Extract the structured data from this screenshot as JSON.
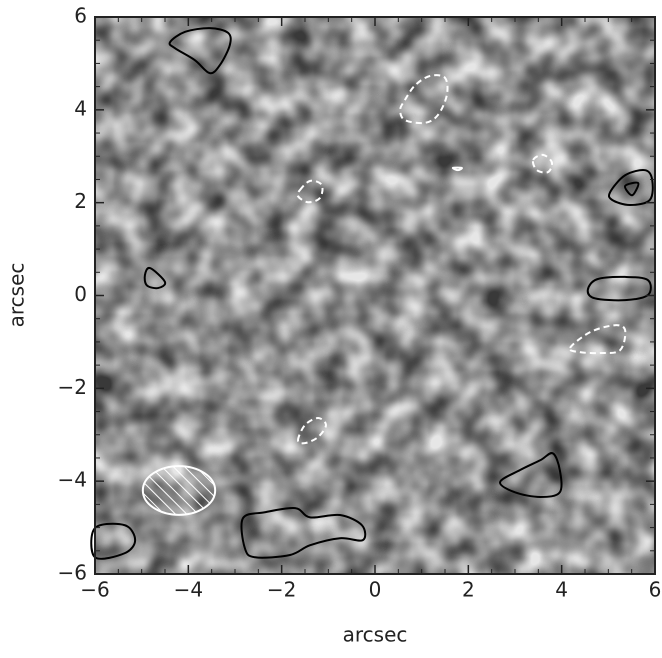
{
  "chart_data": {
    "type": "contour_image",
    "xlabel": "arcsec",
    "ylabel": "arcsec",
    "xlim": [
      -6,
      6
    ],
    "ylim": [
      -6,
      6
    ],
    "xticks": [
      {
        "value": -6,
        "label": "−6"
      },
      {
        "value": -4,
        "label": "−4"
      },
      {
        "value": -2,
        "label": "−2"
      },
      0,
      2,
      4,
      6
    ],
    "yticks": [
      {
        "value": -6,
        "label": "−6"
      },
      {
        "value": -4,
        "label": "−4"
      },
      {
        "value": -2,
        "label": "−2"
      },
      0,
      2,
      4,
      6
    ],
    "minor_ticks": [
      -5.5,
      -5,
      -4.5,
      -3.5,
      -3,
      -2.5,
      -1.5,
      -1,
      -0.5,
      0.5,
      1,
      1.5,
      2.5,
      3,
      3.5,
      4.5,
      5,
      5.5
    ],
    "beam": {
      "x": -4.2,
      "y": -4.2,
      "width": 1.55,
      "height": 1.05,
      "color": "#ffffff"
    },
    "contours": [
      {
        "color": "#000000",
        "dashed": false,
        "x": [
          -4.39,
          -4.07,
          -3.54,
          -3.15,
          -3.11,
          -3.32,
          -3.54,
          -3.86,
          -4.29
        ],
        "y": [
          5.46,
          5.68,
          5.76,
          5.66,
          5.4,
          4.97,
          4.79,
          5.07,
          5.33
        ]
      },
      {
        "color": "#ffffff",
        "dashed": true,
        "x": [
          0.64,
          0.86,
          1.18,
          1.5,
          1.54,
          1.35,
          1.07,
          0.64,
          0.54
        ],
        "y": [
          4.21,
          4.53,
          4.73,
          4.69,
          4.32,
          3.89,
          3.72,
          3.78,
          4.0
        ]
      },
      {
        "color": "#ffffff",
        "dashed": true,
        "x": [
          -1.61,
          -1.39,
          -1.14,
          -1.18,
          -1.44,
          -1.65
        ],
        "y": [
          2.27,
          2.47,
          2.38,
          2.1,
          2.01,
          2.14
        ]
      },
      {
        "color": "#ffffff",
        "dashed": true,
        "x": [
          3.39,
          3.6,
          3.79,
          3.71,
          3.47
        ],
        "y": [
          2.92,
          3.03,
          2.87,
          2.66,
          2.7
        ]
      },
      {
        "color": "#ffffff",
        "dashed": false,
        "x": [
          1.67,
          1.86,
          1.78
        ],
        "y": [
          2.75,
          2.75,
          2.7
        ]
      },
      {
        "color": "#000000",
        "dashed": false,
        "x": [
          5.04,
          5.36,
          5.79,
          5.94,
          5.89,
          5.46,
          5.08
        ],
        "y": [
          2.23,
          2.59,
          2.7,
          2.49,
          2.06,
          1.95,
          2.06
        ]
      },
      {
        "color": "#000000",
        "dashed": false,
        "x": [
          5.36,
          5.64,
          5.51
        ],
        "y": [
          2.36,
          2.42,
          2.16
        ]
      },
      {
        "color": "#000000",
        "dashed": false,
        "x": [
          -4.93,
          -4.82,
          -4.5,
          -4.65,
          -4.89
        ],
        "y": [
          0.44,
          0.59,
          0.29,
          0.16,
          0.22
        ]
      },
      {
        "color": "#000000",
        "dashed": false,
        "x": [
          4.56,
          4.76,
          5.36,
          5.85,
          5.85,
          5.36,
          4.71
        ],
        "y": [
          0.12,
          0.35,
          0.4,
          0.33,
          0.01,
          -0.1,
          -0.06
        ]
      },
      {
        "color": "#ffffff",
        "dashed": true,
        "x": [
          4.18,
          4.61,
          5.14,
          5.36,
          5.25,
          4.82,
          4.39
        ],
        "y": [
          -1.13,
          -0.79,
          -0.64,
          -0.75,
          -1.18,
          -1.24,
          -1.22
        ]
      },
      {
        "color": "#ffffff",
        "dashed": true,
        "x": [
          -1.65,
          -1.5,
          -1.22,
          -1.05,
          -1.22,
          -1.5
        ],
        "y": [
          -3.12,
          -2.79,
          -2.64,
          -2.79,
          -3.05,
          -3.18
        ]
      },
      {
        "color": "#000000",
        "dashed": false,
        "x": [
          2.68,
          3.11,
          3.54,
          3.81,
          3.96,
          3.96,
          3.54,
          3.0
        ],
        "y": [
          -4.02,
          -3.76,
          -3.55,
          -3.4,
          -3.76,
          -4.24,
          -4.34,
          -4.24
        ]
      },
      {
        "color": "#000000",
        "dashed": false,
        "x": [
          -2.83,
          -2.36,
          -1.71,
          -1.39,
          -0.75,
          -0.28,
          -0.26,
          -0.75,
          -1.39,
          -1.82,
          -2.57,
          -2.79
        ],
        "y": [
          -4.8,
          -4.67,
          -4.58,
          -4.78,
          -4.73,
          -4.95,
          -5.27,
          -5.23,
          -5.38,
          -5.59,
          -5.64,
          -5.44
        ]
      },
      {
        "color": "#000000",
        "dashed": false,
        "x": [
          -6,
          -5.36,
          -5.14,
          -5.36,
          -6
        ],
        "y": [
          -5.01,
          -4.95,
          -5.27,
          -5.55,
          -5.64
        ]
      }
    ]
  }
}
